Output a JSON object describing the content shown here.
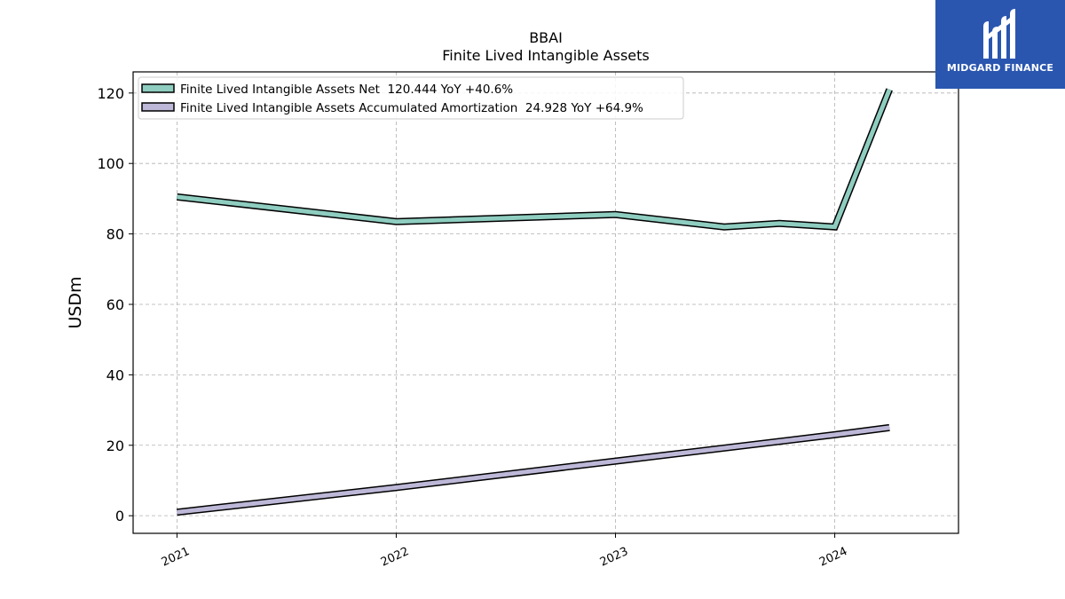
{
  "logo": {
    "text": "MIDGARD FINANCE",
    "icon": "midgard-m-logo",
    "background": "#2a56b0"
  },
  "chart_data": {
    "type": "line",
    "title": "BBAI",
    "subtitle": "Finite Lived Intangible Assets",
    "ylabel": "USDm",
    "xlabel": "",
    "ylim": [
      -5,
      126
    ],
    "yticks": [
      0,
      20,
      40,
      60,
      80,
      100,
      120
    ],
    "xticks": [
      "2021",
      "2022",
      "2023",
      "2024"
    ],
    "grid": true,
    "legend_position": "top-left",
    "series": [
      {
        "name": "Finite Lived Intangible Assets Net",
        "legend_label": "Finite Lived Intangible Assets Net  120.444 YoY +40.6%",
        "color": "#8ecdc0",
        "x": [
          "2021-01-01",
          "2022-01-01",
          "2023-01-01",
          "2023-07-01",
          "2023-10-01",
          "2024-01-01",
          "2024-04-01"
        ],
        "values": [
          90.5,
          83.5,
          85.5,
          82.0,
          83.0,
          82.0,
          121.0
        ]
      },
      {
        "name": "Finite Lived Intangible Assets Accumulated Amortization",
        "legend_label": "Finite Lived Intangible Assets Accumulated Amortization  24.928 YoY +64.9%",
        "color": "#bdb8d7",
        "x": [
          "2021-01-01",
          "2022-01-01",
          "2023-01-01",
          "2024-01-01",
          "2024-04-01"
        ],
        "values": [
          1.0,
          8.0,
          15.5,
          23.0,
          25.0
        ]
      }
    ]
  }
}
